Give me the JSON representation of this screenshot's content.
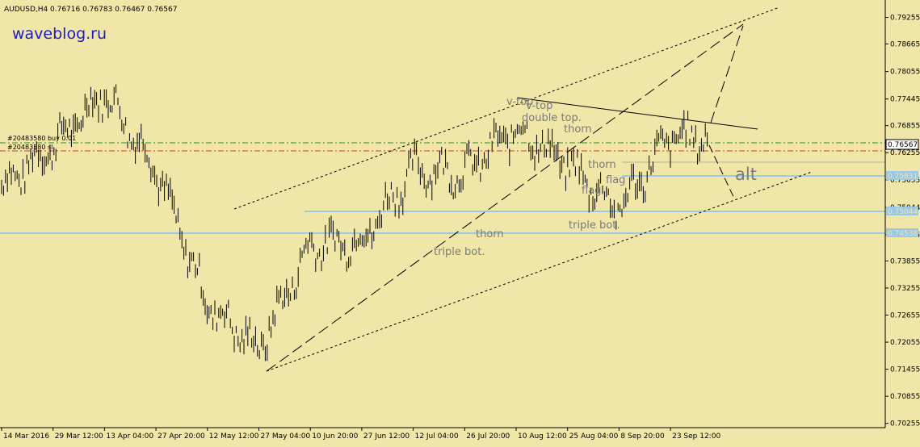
{
  "header": {
    "symbol": "AUDUSD,H4",
    "ohlc": "0.76716 0.76783 0.76467 0.76567"
  },
  "watermark": "waveblog.ru",
  "colors": {
    "background": "#F0E6A8",
    "candle": "#000000",
    "tp_line": "#2E8B2E",
    "sl_line": "#D83A20",
    "level_line": "#9CC8E8",
    "label": "#7A7A7A",
    "brand": "#1A1AC8"
  },
  "chart_data": {
    "type": "line",
    "title": "AUDUSD,H4",
    "x_tick_labels": [
      "14 Mar 2016",
      "29 Mar 12:00",
      "13 Apr 04:00",
      "27 Apr 20:00",
      "12 May 12:00",
      "27 May 04:00",
      "10 Jun 20:00",
      "27 Jun 12:00",
      "12 Jul 04:00",
      "26 Jul 20:00",
      "10 Aug 12:00",
      "25 Aug 04:00",
      "8 Sep 20:00",
      "23 Sep 12:00"
    ],
    "y_tick_labels": [
      "0.79255",
      "0.78665",
      "0.78055",
      "0.77445",
      "0.76855",
      "0.76255",
      "0.75655",
      "0.75044",
      "0.74435",
      "0.73855",
      "0.73255",
      "0.72655",
      "0.72055",
      "0.71455",
      "0.70855",
      "0.70255"
    ],
    "ylim": [
      0.7016,
      0.7964
    ],
    "grid": false,
    "series": [
      {
        "x": [
          "14 Mar 2016",
          "29 Mar 12:00",
          "13 Apr 04:00",
          "27 Apr 20:00",
          "12 May 12:00",
          "27 May 04:00",
          "10 Jun 20:00",
          "27 Jun 12:00",
          "12 Jul 04:00",
          "26 Jul 20:00",
          "10 Aug 12:00",
          "25 Aug 04:00",
          "8 Sep 20:00",
          "23 Sep 12:00"
        ],
        "y": [
          0.755,
          0.764,
          0.776,
          0.759,
          0.729,
          0.719,
          0.742,
          0.743,
          0.759,
          0.758,
          0.768,
          0.76,
          0.75,
          0.766
        ]
      }
    ],
    "current_price": "0.76567",
    "horizontal_levels": [
      {
        "value": 0.7583,
        "label": "0.75831"
      },
      {
        "value": 0.7504,
        "label": "0.75044"
      },
      {
        "value": 0.7454,
        "label": "0.74538"
      }
    ],
    "order_lines": [
      {
        "label": "#20483580 buy 0.01",
        "value": 0.7669
      },
      {
        "label": "#20483580 sl",
        "value": 0.765
      }
    ],
    "annotations": [
      "v-top",
      "v-top",
      "double top.",
      "thorn",
      "thorn",
      "flag",
      "flag",
      "triple bot.",
      "thorn",
      "triple bot.",
      "alt"
    ]
  }
}
